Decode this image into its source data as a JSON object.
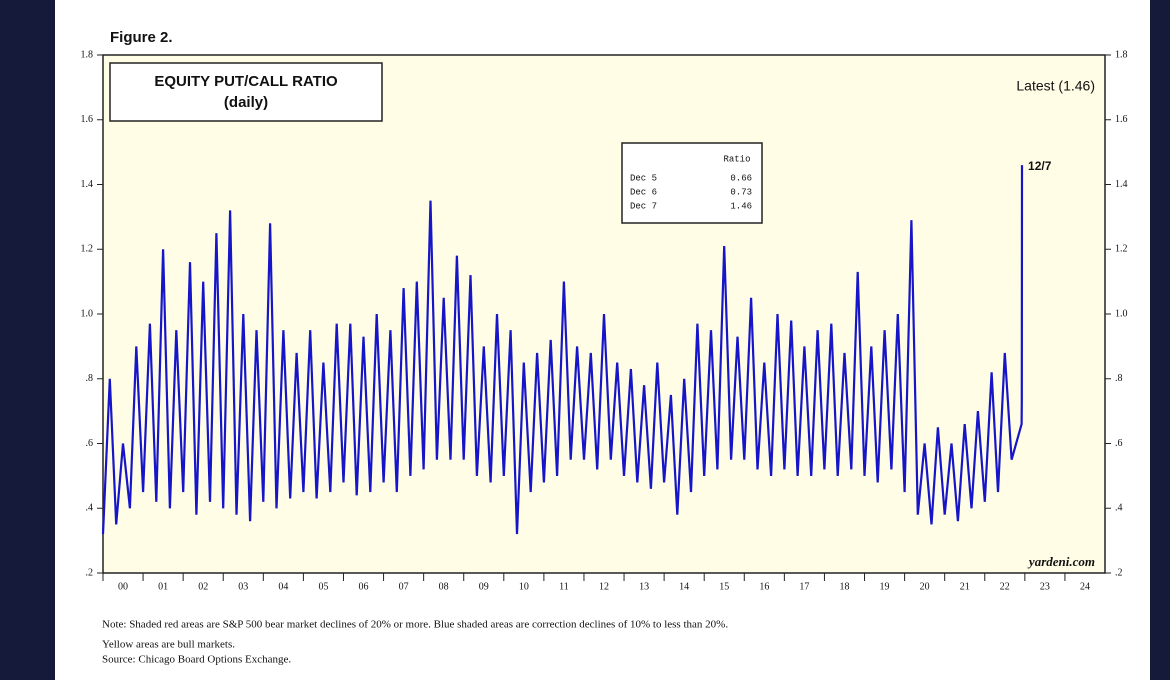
{
  "chart_data": {
    "type": "line",
    "figure": "Figure 2.",
    "title": "EQUITY PUT/CALL RATIO",
    "subtitle": "(daily)",
    "latest": "Latest (1.46)",
    "annotation": "12/7",
    "credit": "yardeni.com",
    "notes": [
      "Note: Shaded red areas are S&P 500 bear market declines of 20% or more.  Blue shaded areas are correction declines of 10% to less than 20%.",
      "Yellow areas are bull markets.",
      "Source: Chicago Board Options Exchange."
    ],
    "table": {
      "header": "Ratio",
      "rows": [
        [
          "Dec 5",
          0.66
        ],
        [
          "Dec 6",
          0.73
        ],
        [
          "Dec 7",
          1.46
        ]
      ]
    },
    "color": "#1616c8",
    "xlim": [
      2000,
      2025
    ],
    "xticks": [
      {
        "value": 2000,
        "label": "00"
      },
      {
        "value": 2001,
        "label": "01"
      },
      {
        "value": 2002,
        "label": "02"
      },
      {
        "value": 2003,
        "label": "03"
      },
      {
        "value": 2004,
        "label": "04"
      },
      {
        "value": 2005,
        "label": "05"
      },
      {
        "value": 2006,
        "label": "06"
      },
      {
        "value": 2007,
        "label": "07"
      },
      {
        "value": 2008,
        "label": "08"
      },
      {
        "value": 2009,
        "label": "09"
      },
      {
        "value": 2010,
        "label": "10"
      },
      {
        "value": 2011,
        "label": "11"
      },
      {
        "value": 2012,
        "label": "12"
      },
      {
        "value": 2013,
        "label": "13"
      },
      {
        "value": 2014,
        "label": "14"
      },
      {
        "value": 2015,
        "label": "15"
      },
      {
        "value": 2016,
        "label": "16"
      },
      {
        "value": 2017,
        "label": "17"
      },
      {
        "value": 2018,
        "label": "18"
      },
      {
        "value": 2019,
        "label": "19"
      },
      {
        "value": 2020,
        "label": "20"
      },
      {
        "value": 2021,
        "label": "21"
      },
      {
        "value": 2022,
        "label": "22"
      },
      {
        "value": 2023,
        "label": "23"
      },
      {
        "value": 2024,
        "label": "24"
      }
    ],
    "ylim": [
      0.2,
      1.8
    ],
    "yticks": [
      {
        "value": 0.2,
        "label": ".2"
      },
      {
        "value": 0.4,
        "label": ".4"
      },
      {
        "value": 0.6,
        "label": ".6"
      },
      {
        "value": 0.8,
        "label": ".8"
      },
      {
        "value": 1.0,
        "label": "1.0"
      },
      1.2,
      1.4,
      1.6,
      1.8
    ],
    "x": [
      2000,
      2000.17,
      2000.33,
      2000.5,
      2000.67,
      2000.83,
      2001,
      2001.17,
      2001.33,
      2001.5,
      2001.67,
      2001.83,
      2002,
      2002.17,
      2002.33,
      2002.5,
      2002.67,
      2002.83,
      2003,
      2003.17,
      2003.33,
      2003.5,
      2003.67,
      2003.83,
      2004,
      2004.17,
      2004.33,
      2004.5,
      2004.67,
      2004.83,
      2005,
      2005.17,
      2005.33,
      2005.5,
      2005.67,
      2005.83,
      2006,
      2006.17,
      2006.33,
      2006.5,
      2006.67,
      2006.83,
      2007,
      2007.17,
      2007.33,
      2007.5,
      2007.67,
      2007.83,
      2008,
      2008.17,
      2008.33,
      2008.5,
      2008.67,
      2008.83,
      2009,
      2009.17,
      2009.33,
      2009.5,
      2009.67,
      2009.83,
      2010,
      2010.17,
      2010.33,
      2010.5,
      2010.67,
      2010.83,
      2011,
      2011.17,
      2011.33,
      2011.5,
      2011.67,
      2011.83,
      2012,
      2012.17,
      2012.33,
      2012.5,
      2012.67,
      2012.83,
      2013,
      2013.17,
      2013.33,
      2013.5,
      2013.67,
      2013.83,
      2014,
      2014.17,
      2014.33,
      2014.5,
      2014.67,
      2014.83,
      2015,
      2015.17,
      2015.33,
      2015.5,
      2015.67,
      2015.83,
      2016,
      2016.17,
      2016.33,
      2016.5,
      2016.67,
      2016.83,
      2017,
      2017.17,
      2017.33,
      2017.5,
      2017.67,
      2017.83,
      2018,
      2018.17,
      2018.33,
      2018.5,
      2018.67,
      2018.83,
      2019,
      2019.17,
      2019.33,
      2019.5,
      2019.67,
      2019.83,
      2020,
      2020.17,
      2020.33,
      2020.5,
      2020.67,
      2020.83,
      2021,
      2021.17,
      2021.33,
      2021.5,
      2021.67,
      2021.83,
      2022,
      2022.17,
      2022.33,
      2022.5,
      2022.67,
      2022.92,
      2022.925,
      2022.93
    ],
    "values": [
      0.32,
      0.8,
      0.35,
      0.6,
      0.4,
      0.9,
      0.45,
      0.97,
      0.42,
      1.2,
      0.4,
      0.95,
      0.45,
      1.16,
      0.38,
      1.1,
      0.42,
      1.25,
      0.4,
      1.32,
      0.38,
      1.0,
      0.36,
      0.95,
      0.42,
      1.28,
      0.4,
      0.95,
      0.43,
      0.88,
      0.45,
      0.95,
      0.43,
      0.85,
      0.45,
      0.97,
      0.48,
      0.97,
      0.44,
      0.93,
      0.45,
      1.0,
      0.48,
      0.95,
      0.45,
      1.08,
      0.5,
      1.1,
      0.52,
      1.35,
      0.55,
      1.05,
      0.55,
      1.18,
      0.55,
      1.12,
      0.5,
      0.9,
      0.48,
      1.0,
      0.5,
      0.95,
      0.32,
      0.85,
      0.45,
      0.88,
      0.48,
      0.92,
      0.5,
      1.1,
      0.55,
      0.9,
      0.55,
      0.88,
      0.52,
      1.0,
      0.55,
      0.85,
      0.5,
      0.83,
      0.48,
      0.78,
      0.46,
      0.85,
      0.48,
      0.75,
      0.38,
      0.8,
      0.45,
      0.97,
      0.5,
      0.95,
      0.52,
      1.21,
      0.55,
      0.93,
      0.55,
      1.05,
      0.52,
      0.85,
      0.5,
      1.0,
      0.52,
      0.98,
      0.5,
      0.9,
      0.5,
      0.95,
      0.52,
      0.97,
      0.5,
      0.88,
      0.52,
      1.13,
      0.5,
      0.9,
      0.48,
      0.95,
      0.52,
      1.0,
      0.45,
      1.29,
      0.38,
      0.6,
      0.35,
      0.65,
      0.38,
      0.6,
      0.36,
      0.66,
      0.4,
      0.7,
      0.42,
      0.82,
      0.45,
      0.88,
      0.55,
      0.66,
      0.73,
      1.46
    ]
  }
}
